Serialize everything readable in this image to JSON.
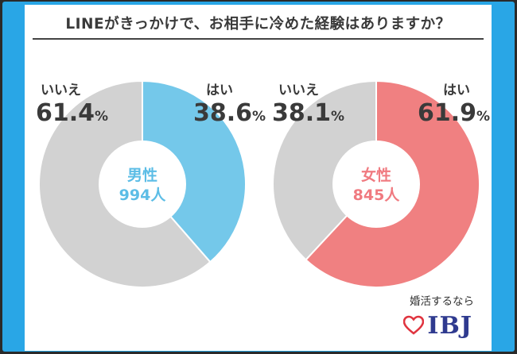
{
  "title": "LINEがきっかけで、お相手に冷めた経験はありますか？",
  "colors": {
    "male_yes": "#74c8ea",
    "female_yes": "#f08081",
    "no": "#d2d2d2",
    "male_text": "#5cbde6",
    "female_text": "#f07a80",
    "frame": "#29a6e6",
    "brand": "#2f3a8f",
    "heart": "#e0343f"
  },
  "chart_data": [
    {
      "type": "pie",
      "title": "男性",
      "center_label": "男性",
      "center_count": "994人",
      "slices": [
        {
          "label": "はい",
          "value": 38.6,
          "display": "38.6",
          "unit": "%",
          "color": "#74c8ea"
        },
        {
          "label": "いいえ",
          "value": 61.4,
          "display": "61.4",
          "unit": "%",
          "color": "#d2d2d2"
        }
      ]
    },
    {
      "type": "pie",
      "title": "女性",
      "center_label": "女性",
      "center_count": "845人",
      "slices": [
        {
          "label": "はい",
          "value": 61.9,
          "display": "61.9",
          "unit": "%",
          "color": "#f08081"
        },
        {
          "label": "いいえ",
          "value": 38.1,
          "display": "38.1",
          "unit": "%",
          "color": "#d2d2d2"
        }
      ]
    }
  ],
  "brand": {
    "tagline": "婚活するなら",
    "name": "IBJ",
    "logo_icon": "heart-icon"
  }
}
